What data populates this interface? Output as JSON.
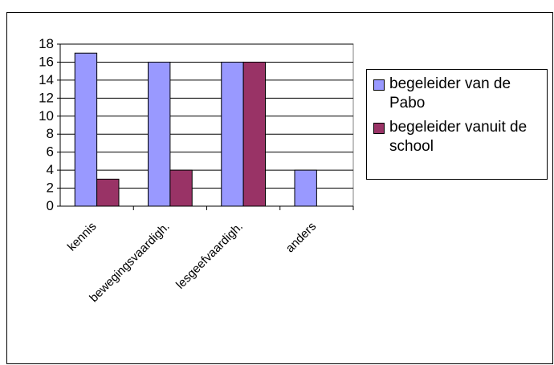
{
  "chart_data": {
    "type": "bar",
    "categories": [
      "kennis",
      "bewegingsvaardigh.",
      "lesgeefvaardigh.",
      "anders"
    ],
    "series": [
      {
        "name": "begeleider van de Pabo",
        "color": "#9999ff",
        "values": [
          17,
          16,
          16,
          4
        ]
      },
      {
        "name": "begeleider vanuit de school",
        "color": "#993366",
        "values": [
          3,
          4,
          16,
          0
        ]
      }
    ],
    "ylim": [
      0,
      18
    ],
    "yticks": [
      0,
      2,
      4,
      6,
      8,
      10,
      12,
      14,
      16,
      18
    ],
    "grid": true,
    "legend": "right"
  }
}
